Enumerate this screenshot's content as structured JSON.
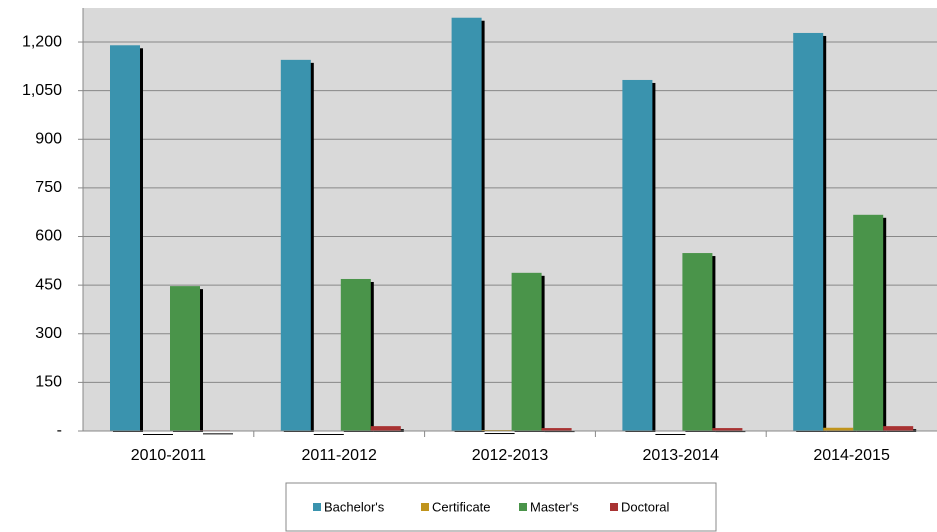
{
  "chart_data": {
    "type": "bar",
    "categories": [
      "2010-2011",
      "2011-2012",
      "2012-2013",
      "2013-2014",
      "2014-2015"
    ],
    "series": [
      {
        "name": "Bachelor's",
        "color": "#3a93ae",
        "values": [
          1190,
          1145,
          1275,
          1083,
          1228
        ]
      },
      {
        "name": "Certificate",
        "color": "#c0941c",
        "values": [
          0,
          0,
          3,
          0,
          10
        ]
      },
      {
        "name": "Master's",
        "color": "#4a944a",
        "values": [
          447,
          469,
          488,
          549,
          667
        ]
      },
      {
        "name": "Doctoral",
        "color": "#a83232",
        "values": [
          2,
          15,
          9,
          9,
          15
        ]
      }
    ],
    "ylim": [
      0,
      1305
    ],
    "yticks": [
      {
        "value": 0,
        "label": "-"
      },
      150,
      300,
      450,
      600,
      750,
      900,
      {
        "value": 1050,
        "label": "1,050"
      },
      {
        "value": 1200,
        "label": "1,200"
      }
    ],
    "grid": true,
    "legend": "bottom"
  }
}
